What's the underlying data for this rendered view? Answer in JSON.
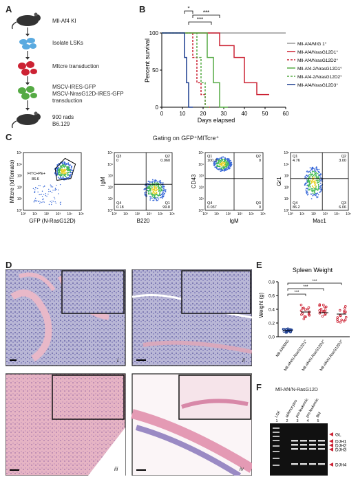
{
  "panels": {
    "a": "A",
    "b": "B",
    "c": "C",
    "d": "D",
    "e": "E",
    "f": "F"
  },
  "workflow": {
    "steps": [
      "Mll-Af4 KI",
      "Isolate LSKs",
      "MItcre transduction",
      "MSCV-IRES-GFP",
      "MSCV-NrasG12D-IRES-GFP",
      "transduction",
      "900 rads",
      "B6.129"
    ],
    "colors": {
      "mouse": "#333333",
      "lsk": "#5aaae0",
      "transduced": "#cc2233",
      "gfp": "#55aa44"
    }
  },
  "chart_data": [
    {
      "type": "line",
      "title": "",
      "xlabel": "Days elapsed",
      "ylabel": "Percent survival",
      "xlim": [
        0,
        60
      ],
      "ylim": [
        0,
        100
      ],
      "xticks": [
        "0",
        "10",
        "20",
        "30",
        "40",
        "50",
        "60"
      ],
      "yticks": [
        "0",
        "50",
        "100"
      ],
      "significance": [
        "*",
        "***",
        "***"
      ],
      "series": [
        {
          "name": "Mll-Af4/MIG 1°",
          "color": "#999999",
          "dash": "",
          "x": [
            0,
            60
          ],
          "y": [
            100,
            100
          ]
        },
        {
          "name": "Mll-Af4/NrasG12D1°",
          "color": "#cc2233",
          "dash": "",
          "x": [
            0,
            28,
            28,
            35,
            35,
            40,
            40,
            46,
            46,
            52
          ],
          "y": [
            100,
            100,
            83,
            83,
            67,
            67,
            33,
            33,
            17,
            17
          ]
        },
        {
          "name": "Mll-Af4/NrasG12D2°",
          "color": "#cc2233",
          "dash": "3,2",
          "x": [
            0,
            15,
            15,
            17,
            17,
            19,
            19,
            21,
            21,
            24
          ],
          "y": [
            100,
            100,
            67,
            67,
            33,
            33,
            17,
            17,
            0,
            0
          ]
        },
        {
          "name": "Mll-Af4-2/NrasG12D1°",
          "color": "#55aa44",
          "dash": "",
          "x": [
            0,
            22,
            22,
            25,
            25,
            28,
            28,
            32
          ],
          "y": [
            100,
            100,
            67,
            67,
            33,
            33,
            0,
            0
          ]
        },
        {
          "name": "Mll-Af4-2/NrasG12D2°",
          "color": "#55aa44",
          "dash": "3,2",
          "x": [
            0,
            17,
            17,
            19,
            19,
            21,
            21,
            23
          ],
          "y": [
            100,
            100,
            67,
            67,
            33,
            33,
            0,
            0
          ]
        },
        {
          "name": "Mll-Af4/NrasG12D3°",
          "color": "#1c3d8f",
          "dash": "",
          "x": [
            0,
            11,
            11,
            12,
            12,
            13,
            13,
            15
          ],
          "y": [
            100,
            100,
            67,
            67,
            33,
            33,
            0,
            0
          ]
        }
      ]
    },
    {
      "type": "scatter",
      "title": "Spleen Weight",
      "xlabel": "",
      "ylabel": "Weight (g)",
      "ylim": [
        0,
        0.8
      ],
      "yticks": [
        "0.0",
        "0.2",
        "0.4",
        "0.6",
        "0.8"
      ],
      "categories": [
        "Mll-Af4/MIG",
        "Mll-Af4/N-RasG12D1°",
        "Mll-Af4/N-RasG12D2°",
        "Mll-Af4/N-RasG12D3°"
      ],
      "means": [
        0.09,
        0.36,
        0.35,
        0.33
      ],
      "significance": [
        "***",
        "***",
        "***"
      ],
      "colors": [
        "#1c3d8f",
        "#cc2233",
        "#cc2233",
        "#cc2233"
      ]
    }
  ],
  "facs": {
    "gating_title": "Gating on GFP⁺MITcre⁺",
    "plot1": {
      "ylabel": "MItcre (tdTomato)",
      "xlabel": "GFP (N-RasG12D)",
      "gate": "FITC+PE+",
      "gate_value": "86.6"
    },
    "plot2": {
      "ylabel": "IgM",
      "xlabel": "B220",
      "q": [
        {
          "id": "Q3",
          "v": "0"
        },
        {
          "id": "Q2",
          "v": "0.060"
        },
        {
          "id": "Q4",
          "v": "0.18"
        },
        {
          "id": "Q1",
          "v": "99.8"
        }
      ]
    },
    "plot3": {
      "ylabel": "CD43",
      "xlabel": "IgM",
      "q": [
        {
          "id": "Q1",
          "v": "100.0"
        },
        {
          "id": "Q2",
          "v": "0"
        },
        {
          "id": "Q4",
          "v": "0.037"
        },
        {
          "id": "Q3",
          "v": "0"
        }
      ]
    },
    "plot4": {
      "ylabel": "Gr1",
      "xlabel": "Mac1",
      "q": [
        {
          "id": "Q1",
          "v": "4.76"
        },
        {
          "id": "Q2",
          "v": "3.00"
        },
        {
          "id": "Q4",
          "v": "86.2"
        },
        {
          "id": "Q3",
          "v": "6.06"
        }
      ]
    },
    "axis_ticks": [
      "10⁰",
      "10¹",
      "10²",
      "10³",
      "10⁴",
      "10⁵"
    ]
  },
  "histology": {
    "labels": [
      "i",
      "ii",
      "iii",
      "iv"
    ]
  },
  "gel": {
    "title": "Mll-Af4/N-RasG12D",
    "lanes": [
      "LSK",
      "splenocytes",
      "pre-leukemic",
      "pre-leukemic",
      "BM"
    ],
    "lane_numbers": [
      "1",
      "2",
      "3",
      "4",
      "5"
    ],
    "bands": [
      "GL",
      "DJH1",
      "DJH2",
      "DJH3",
      "DJH4"
    ]
  }
}
